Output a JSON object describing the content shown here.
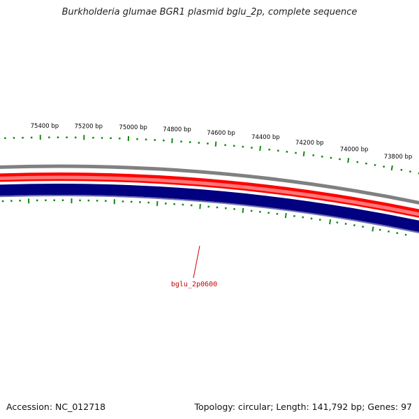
{
  "title": "Burkholderia glumae BGR1 plasmid bglu_2p, complete sequence",
  "accession_label": "Accession: NC_012718",
  "summary_label": "Topology: circular; Length: 141,792 bp; Genes: 97",
  "scale": {
    "tick_labels": [
      "75400 bp",
      "75200 bp",
      "75000 bp",
      "74800 bp",
      "74600 bp",
      "74400 bp",
      "74200 bp",
      "74000 bp",
      "73800 bp"
    ]
  },
  "genes": [
    {
      "label": "bglu_2p0600"
    }
  ],
  "colors": {
    "backbone": "#808080",
    "forward_strand": "#ff0000",
    "reverse_strand": "#000080",
    "tick": "#118811",
    "gene_label": "#cc0000"
  }
}
